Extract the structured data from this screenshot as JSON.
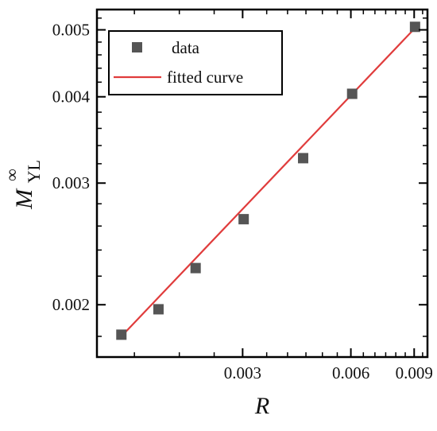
{
  "chart_data": {
    "type": "scatter",
    "title": "",
    "xlabel": "R",
    "ylabel": {
      "main": "M",
      "superscript": "∞",
      "subscript": "YL"
    },
    "x_scale": "log",
    "y_scale": "log",
    "xlim": [
      0.00118,
      0.0098
    ],
    "ylim": [
      0.00168,
      0.00535
    ],
    "x_ticks": [
      {
        "value": 0.003,
        "label": "0.003"
      },
      {
        "value": 0.006,
        "label": "0.006"
      },
      {
        "value": 0.009,
        "label": "0.009"
      }
    ],
    "y_ticks": [
      {
        "value": 0.002,
        "label": "0.002"
      },
      {
        "value": 0.003,
        "label": "0.003"
      },
      {
        "value": 0.004,
        "label": "0.004"
      },
      {
        "value": 0.005,
        "label": "0.005"
      }
    ],
    "series": [
      {
        "name": "data",
        "kind": "scatter",
        "marker": "square",
        "color": "#555555",
        "x": [
          0.00138,
          0.00175,
          0.00222,
          0.00302,
          0.00442,
          0.00605,
          0.00905
        ],
        "y": [
          0.00181,
          0.00197,
          0.00226,
          0.00266,
          0.00326,
          0.00404,
          0.00505
        ]
      },
      {
        "name": "fitted curve",
        "kind": "line",
        "color": "#e03c3c",
        "x": [
          0.00138,
          0.00905
        ],
        "y": [
          0.0018,
          0.00503
        ]
      }
    ],
    "legend": {
      "position": "top-left",
      "entries": [
        "data",
        "fitted curve"
      ]
    },
    "grid": false
  }
}
